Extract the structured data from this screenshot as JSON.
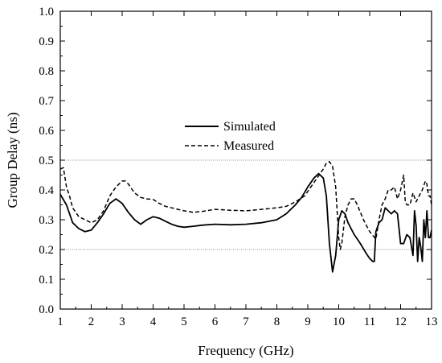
{
  "chart_data": {
    "type": "line",
    "xlabel": "Frequency (GHz)",
    "ylabel": "Group Delay (ns)",
    "xlim": [
      1,
      13
    ],
    "ylim": [
      0,
      1.0
    ],
    "xticks": [
      "1",
      "2",
      "3",
      "4",
      "5",
      "6",
      "7",
      "8",
      "9",
      "10",
      "11",
      "12",
      "13"
    ],
    "yticks": [
      "0.0",
      "0.1",
      "0.2",
      "0.3",
      "0.4",
      "0.5",
      "0.6",
      "0.7",
      "0.8",
      "0.9",
      "1.0"
    ],
    "grid": false,
    "reference_lines": [
      0.2,
      0.5
    ],
    "legend": {
      "position": "center",
      "entries": [
        "Simulated",
        "Measured"
      ]
    },
    "series": [
      {
        "name": "Simulated",
        "style": "solid",
        "x": [
          1.0,
          1.2,
          1.4,
          1.6,
          1.8,
          2.0,
          2.2,
          2.4,
          2.6,
          2.8,
          3.0,
          3.2,
          3.4,
          3.6,
          3.8,
          4.0,
          4.2,
          4.4,
          4.6,
          4.8,
          5.0,
          5.3,
          5.6,
          6.0,
          6.5,
          7.0,
          7.5,
          8.0,
          8.3,
          8.6,
          8.8,
          9.0,
          9.2,
          9.35,
          9.5,
          9.6,
          9.7,
          9.8,
          9.9,
          10.0,
          10.1,
          10.2,
          10.3,
          10.4,
          10.5,
          10.7,
          10.9,
          11.0,
          11.1,
          11.15,
          11.2,
          11.3,
          11.4,
          11.5,
          11.6,
          11.7,
          11.8,
          11.9,
          12.0,
          12.1,
          12.2,
          12.3,
          12.4,
          12.45,
          12.5,
          12.55,
          12.6,
          12.65,
          12.7,
          12.75,
          12.8,
          12.85,
          12.9,
          12.95,
          13.0
        ],
        "y": [
          0.385,
          0.35,
          0.29,
          0.27,
          0.26,
          0.265,
          0.29,
          0.32,
          0.355,
          0.37,
          0.355,
          0.325,
          0.3,
          0.285,
          0.3,
          0.31,
          0.305,
          0.295,
          0.285,
          0.278,
          0.275,
          0.278,
          0.282,
          0.285,
          0.283,
          0.285,
          0.29,
          0.3,
          0.32,
          0.35,
          0.375,
          0.41,
          0.44,
          0.455,
          0.44,
          0.38,
          0.22,
          0.125,
          0.18,
          0.3,
          0.33,
          0.32,
          0.29,
          0.27,
          0.25,
          0.22,
          0.185,
          0.17,
          0.16,
          0.16,
          0.26,
          0.29,
          0.3,
          0.34,
          0.33,
          0.32,
          0.33,
          0.32,
          0.22,
          0.22,
          0.25,
          0.24,
          0.18,
          0.33,
          0.28,
          0.16,
          0.24,
          0.21,
          0.16,
          0.3,
          0.24,
          0.33,
          0.24,
          0.24,
          0.265
        ]
      },
      {
        "name": "Measured",
        "style": "dashed",
        "x": [
          1.0,
          1.1,
          1.2,
          1.3,
          1.4,
          1.6,
          1.8,
          2.0,
          2.2,
          2.4,
          2.6,
          2.8,
          3.0,
          3.1,
          3.2,
          3.4,
          3.6,
          3.8,
          4.0,
          4.2,
          4.4,
          4.6,
          4.8,
          5.0,
          5.3,
          5.6,
          6.0,
          6.5,
          7.0,
          7.5,
          8.0,
          8.3,
          8.6,
          8.9,
          9.1,
          9.3,
          9.5,
          9.6,
          9.7,
          9.8,
          9.9,
          10.0,
          10.05,
          10.1,
          10.2,
          10.3,
          10.4,
          10.5,
          10.6,
          10.8,
          11.0,
          11.2,
          11.3,
          11.4,
          11.5,
          11.6,
          11.7,
          11.8,
          11.9,
          12.0,
          12.1,
          12.15,
          12.2,
          12.3,
          12.4,
          12.5,
          12.6,
          12.7,
          12.8,
          12.85,
          12.9,
          12.95,
          13.0
        ],
        "y": [
          0.47,
          0.475,
          0.41,
          0.38,
          0.34,
          0.31,
          0.3,
          0.29,
          0.3,
          0.33,
          0.38,
          0.41,
          0.43,
          0.43,
          0.42,
          0.39,
          0.375,
          0.37,
          0.368,
          0.355,
          0.345,
          0.34,
          0.335,
          0.33,
          0.325,
          0.328,
          0.335,
          0.332,
          0.33,
          0.335,
          0.34,
          0.345,
          0.36,
          0.38,
          0.41,
          0.44,
          0.47,
          0.49,
          0.495,
          0.48,
          0.41,
          0.24,
          0.2,
          0.22,
          0.31,
          0.35,
          0.37,
          0.37,
          0.35,
          0.3,
          0.26,
          0.235,
          0.3,
          0.35,
          0.37,
          0.4,
          0.4,
          0.41,
          0.37,
          0.4,
          0.45,
          0.36,
          0.35,
          0.35,
          0.39,
          0.36,
          0.38,
          0.4,
          0.43,
          0.42,
          0.38,
          0.38,
          0.35
        ]
      }
    ]
  }
}
